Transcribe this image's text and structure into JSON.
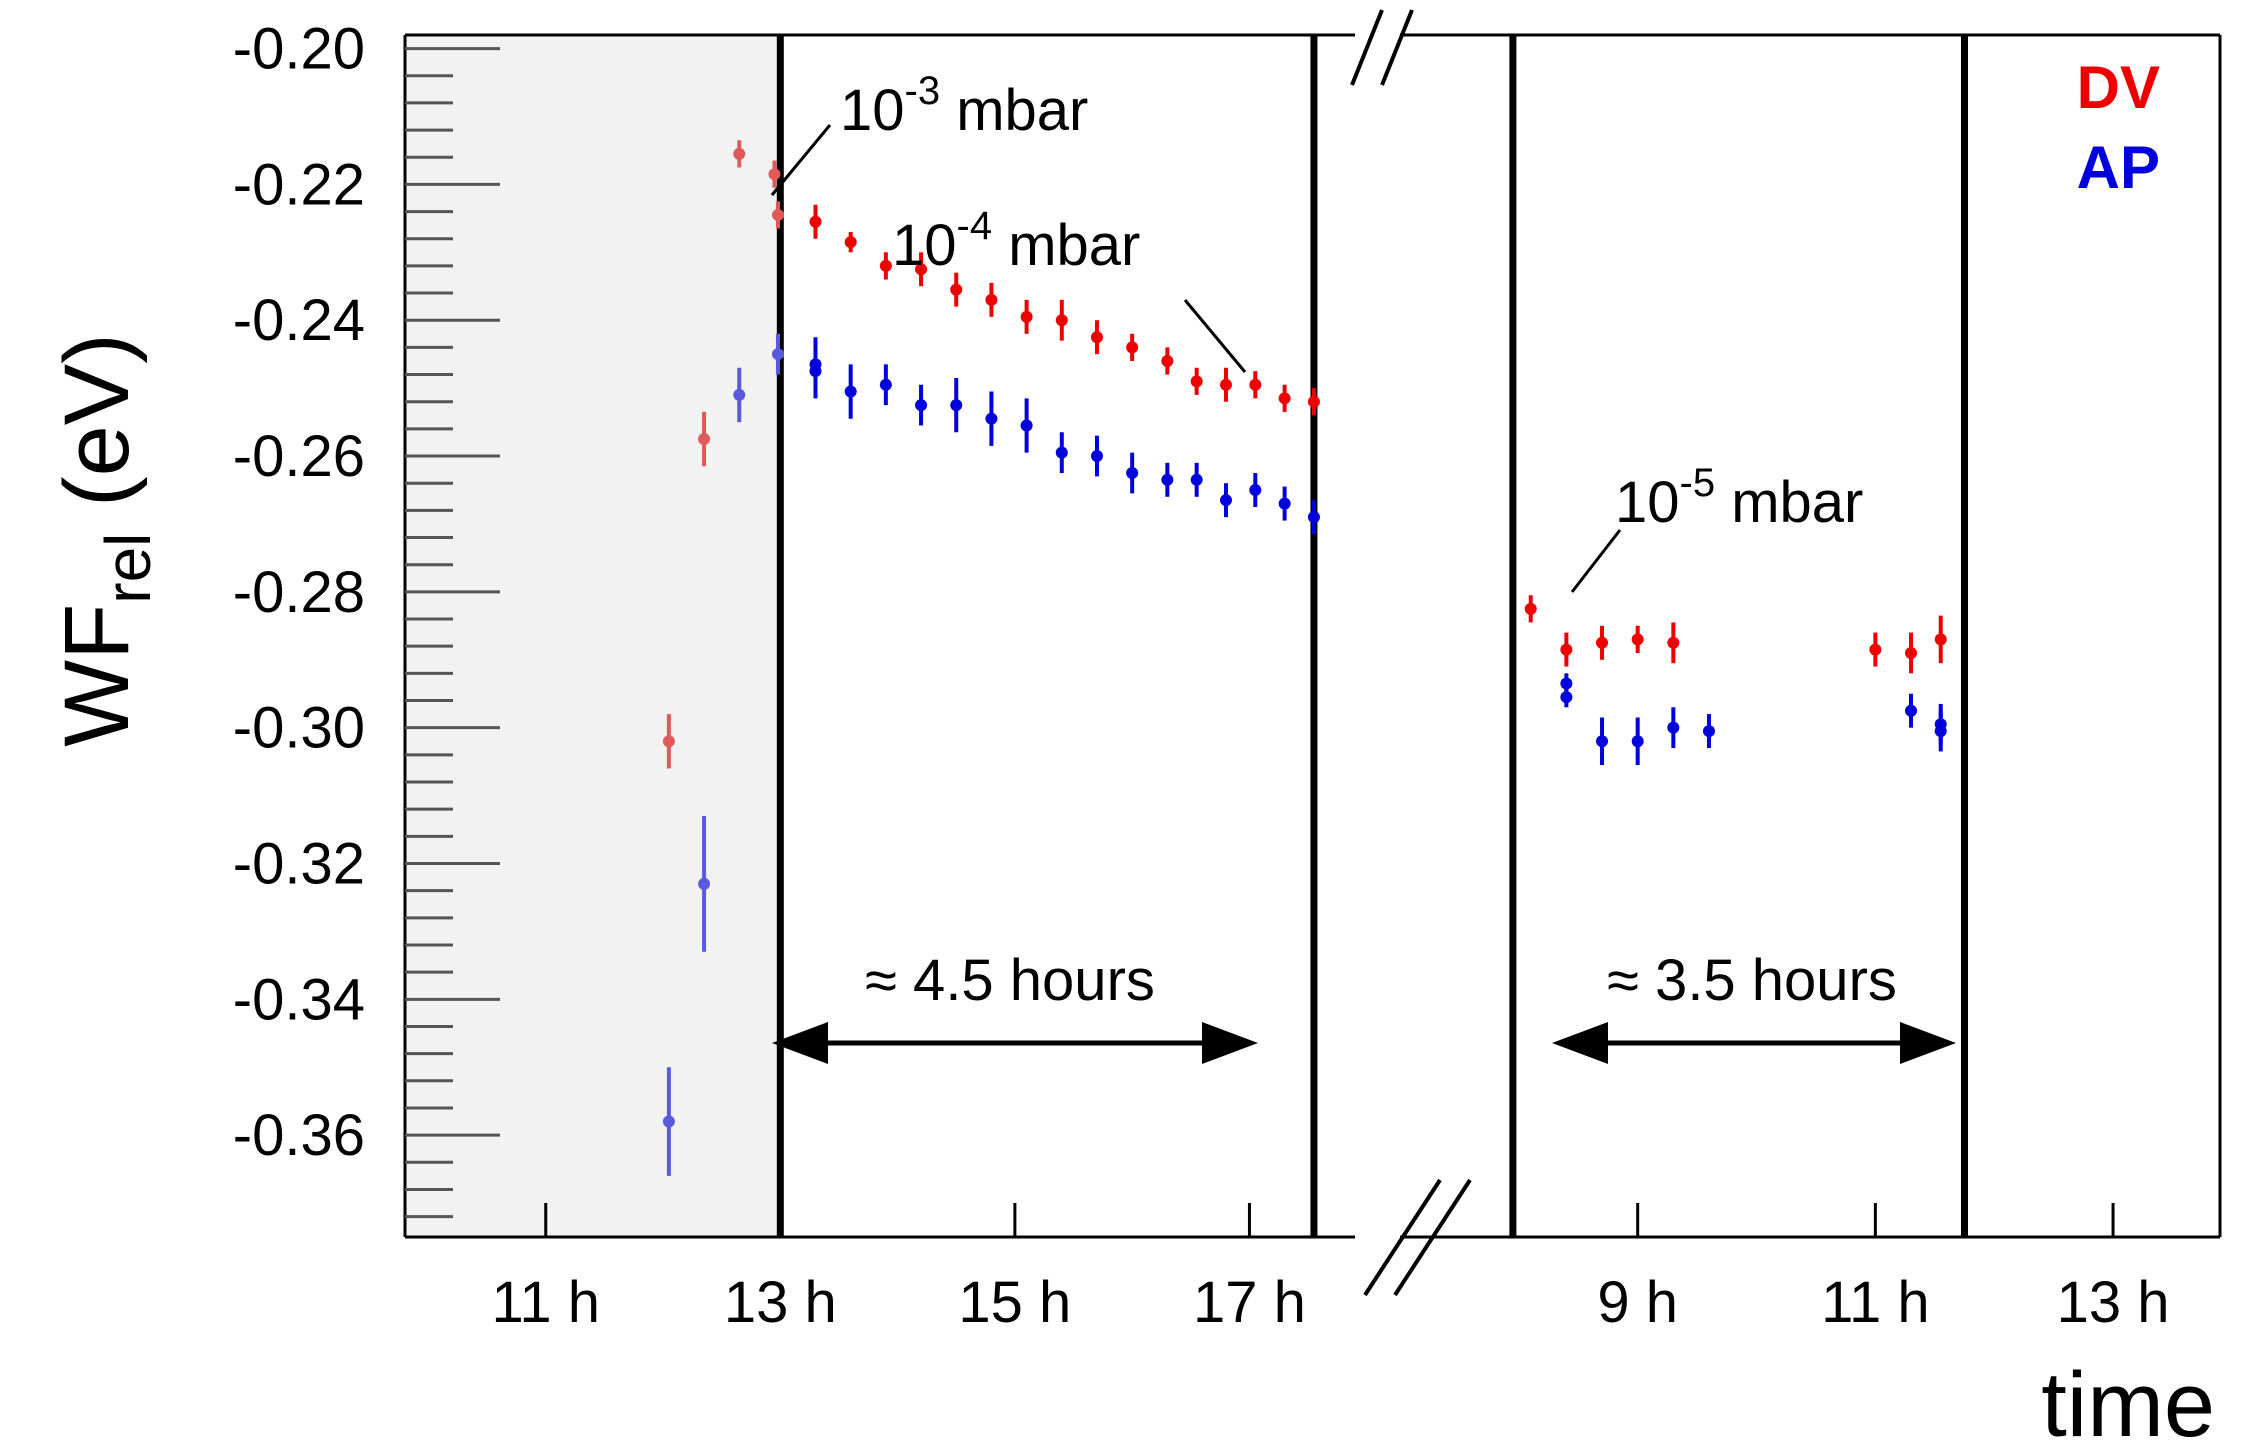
{
  "chart_data": {
    "type": "scatter",
    "title": "",
    "ylabel": {
      "main": "WF",
      "subscript": "rel",
      "unit": "(eV)"
    },
    "xlabel": "time",
    "ylim": [
      -0.375,
      -0.198
    ],
    "y_ticks": [
      "-0.20",
      "-0.22",
      "-0.24",
      "-0.26",
      "-0.28",
      "-0.30",
      "-0.32",
      "-0.34",
      "-0.36"
    ],
    "x_axis_break": true,
    "segments": [
      {
        "name": "day1",
        "xlim": [
          9.8,
          17.9
        ],
        "ticks": [
          {
            "value": 11,
            "label": "11 h"
          },
          {
            "value": 13,
            "label": "13 h"
          },
          {
            "value": 15,
            "label": "15 h"
          },
          {
            "value": 17,
            "label": "17 h"
          }
        ]
      },
      {
        "name": "day2",
        "xlim": [
          7.0,
          13.9
        ],
        "ticks": [
          {
            "value": 9,
            "label": "9 h"
          },
          {
            "value": 11,
            "label": "11 h"
          },
          {
            "value": 13,
            "label": "13 h"
          }
        ]
      }
    ],
    "shaded_region": {
      "segment": "day1",
      "x": [
        9.8,
        13.0
      ]
    },
    "vertical_lines": [
      {
        "segment": "day1",
        "x": 13.0
      },
      {
        "segment": "day1",
        "x": 17.55
      },
      {
        "segment": "day2",
        "x": 7.95
      },
      {
        "segment": "day2",
        "x": 11.75
      }
    ],
    "series": [
      {
        "name": "DV",
        "color": "#ee0000",
        "faded_color": "#e05a5a",
        "points": [
          {
            "seg": "day1",
            "x": 12.05,
            "y": -0.302,
            "err": 0.004,
            "faded": true
          },
          {
            "seg": "day1",
            "x": 12.35,
            "y": -0.2575,
            "err": 0.004,
            "faded": true
          },
          {
            "seg": "day1",
            "x": 12.65,
            "y": -0.2155,
            "err": 0.002,
            "faded": true
          },
          {
            "seg": "day1",
            "x": 12.95,
            "y": -0.2185,
            "err": 0.002,
            "faded": true
          },
          {
            "seg": "day1",
            "x": 12.98,
            "y": -0.2245,
            "err": 0.002,
            "faded": true
          },
          {
            "seg": "day1",
            "x": 13.3,
            "y": -0.2255,
            "err": 0.0025
          },
          {
            "seg": "day1",
            "x": 13.6,
            "y": -0.2285,
            "err": 0.0015
          },
          {
            "seg": "day1",
            "x": 13.9,
            "y": -0.232,
            "err": 0.002
          },
          {
            "seg": "day1",
            "x": 14.2,
            "y": -0.2325,
            "err": 0.0025
          },
          {
            "seg": "day1",
            "x": 14.5,
            "y": -0.2355,
            "err": 0.0025
          },
          {
            "seg": "day1",
            "x": 14.8,
            "y": -0.237,
            "err": 0.0025
          },
          {
            "seg": "day1",
            "x": 15.1,
            "y": -0.2395,
            "err": 0.0025
          },
          {
            "seg": "day1",
            "x": 15.4,
            "y": -0.24,
            "err": 0.003
          },
          {
            "seg": "day1",
            "x": 15.7,
            "y": -0.2425,
            "err": 0.0025
          },
          {
            "seg": "day1",
            "x": 16.0,
            "y": -0.244,
            "err": 0.002
          },
          {
            "seg": "day1",
            "x": 16.3,
            "y": -0.246,
            "err": 0.002
          },
          {
            "seg": "day1",
            "x": 16.55,
            "y": -0.249,
            "err": 0.002
          },
          {
            "seg": "day1",
            "x": 16.8,
            "y": -0.2495,
            "err": 0.0025
          },
          {
            "seg": "day1",
            "x": 17.05,
            "y": -0.2495,
            "err": 0.002
          },
          {
            "seg": "day1",
            "x": 17.3,
            "y": -0.2515,
            "err": 0.002
          },
          {
            "seg": "day1",
            "x": 17.55,
            "y": -0.252,
            "err": 0.002
          },
          {
            "seg": "day2",
            "x": 8.1,
            "y": -0.2825,
            "err": 0.002
          },
          {
            "seg": "day2",
            "x": 8.4,
            "y": -0.2885,
            "err": 0.0025
          },
          {
            "seg": "day2",
            "x": 8.7,
            "y": -0.2875,
            "err": 0.0025
          },
          {
            "seg": "day2",
            "x": 9.0,
            "y": -0.287,
            "err": 0.002
          },
          {
            "seg": "day2",
            "x": 9.3,
            "y": -0.2875,
            "err": 0.003
          },
          {
            "seg": "day2",
            "x": 11.0,
            "y": -0.2885,
            "err": 0.0025
          },
          {
            "seg": "day2",
            "x": 11.3,
            "y": -0.289,
            "err": 0.003
          },
          {
            "seg": "day2",
            "x": 11.55,
            "y": -0.287,
            "err": 0.0035
          }
        ]
      },
      {
        "name": "AP",
        "color": "#0000dd",
        "faded_color": "#5a5ae0",
        "points": [
          {
            "seg": "day1",
            "x": 12.05,
            "y": -0.358,
            "err": 0.008,
            "faded": true
          },
          {
            "seg": "day1",
            "x": 12.35,
            "y": -0.323,
            "err": 0.01,
            "faded": true
          },
          {
            "seg": "day1",
            "x": 12.65,
            "y": -0.251,
            "err": 0.004,
            "faded": true
          },
          {
            "seg": "day1",
            "x": 12.98,
            "y": -0.245,
            "err": 0.003,
            "faded": true
          },
          {
            "seg": "day1",
            "x": 13.3,
            "y": -0.2465,
            "err": 0.004
          },
          {
            "seg": "day1",
            "x": 13.3,
            "y": -0.2475,
            "err": 0.004
          },
          {
            "seg": "day1",
            "x": 13.6,
            "y": -0.2505,
            "err": 0.004
          },
          {
            "seg": "day1",
            "x": 13.9,
            "y": -0.2495,
            "err": 0.003
          },
          {
            "seg": "day1",
            "x": 14.2,
            "y": -0.2525,
            "err": 0.003
          },
          {
            "seg": "day1",
            "x": 14.5,
            "y": -0.2525,
            "err": 0.004
          },
          {
            "seg": "day1",
            "x": 14.8,
            "y": -0.2545,
            "err": 0.004
          },
          {
            "seg": "day1",
            "x": 15.1,
            "y": -0.2555,
            "err": 0.004
          },
          {
            "seg": "day1",
            "x": 15.4,
            "y": -0.2595,
            "err": 0.003
          },
          {
            "seg": "day1",
            "x": 15.7,
            "y": -0.26,
            "err": 0.003
          },
          {
            "seg": "day1",
            "x": 16.0,
            "y": -0.2625,
            "err": 0.003
          },
          {
            "seg": "day1",
            "x": 16.3,
            "y": -0.2635,
            "err": 0.0025
          },
          {
            "seg": "day1",
            "x": 16.55,
            "y": -0.2635,
            "err": 0.0025
          },
          {
            "seg": "day1",
            "x": 16.8,
            "y": -0.2665,
            "err": 0.0025
          },
          {
            "seg": "day1",
            "x": 17.05,
            "y": -0.265,
            "err": 0.0025
          },
          {
            "seg": "day1",
            "x": 17.3,
            "y": -0.267,
            "err": 0.0025
          },
          {
            "seg": "day1",
            "x": 17.55,
            "y": -0.269,
            "err": 0.0025
          },
          {
            "seg": "day2",
            "x": 8.4,
            "y": -0.2935,
            "err": 0.0015
          },
          {
            "seg": "day2",
            "x": 8.4,
            "y": -0.2955,
            "err": 0.0015
          },
          {
            "seg": "day2",
            "x": 8.7,
            "y": -0.302,
            "err": 0.0035
          },
          {
            "seg": "day2",
            "x": 9.0,
            "y": -0.302,
            "err": 0.0035
          },
          {
            "seg": "day2",
            "x": 9.3,
            "y": -0.3,
            "err": 0.003
          },
          {
            "seg": "day2",
            "x": 9.6,
            "y": -0.3005,
            "err": 0.0025
          },
          {
            "seg": "day2",
            "x": 11.3,
            "y": -0.2975,
            "err": 0.0025
          },
          {
            "seg": "day2",
            "x": 11.55,
            "y": -0.2995,
            "err": 0.003
          },
          {
            "seg": "day2",
            "x": 11.55,
            "y": -0.3005,
            "err": 0.003
          }
        ]
      }
    ],
    "annotations": [
      {
        "base": "10",
        "exp": "-3",
        "unit": " mbar"
      },
      {
        "base": "10",
        "exp": "-4",
        "unit": " mbar"
      },
      {
        "base": "10",
        "exp": "-5",
        "unit": " mbar"
      }
    ],
    "durations": [
      {
        "label": "≈ 4.5 hours"
      },
      {
        "label": "≈ 3.5 hours"
      }
    ],
    "legend": [
      {
        "label": "DV",
        "color": "#ee0000"
      },
      {
        "label": "AP",
        "color": "#0000dd"
      }
    ]
  }
}
